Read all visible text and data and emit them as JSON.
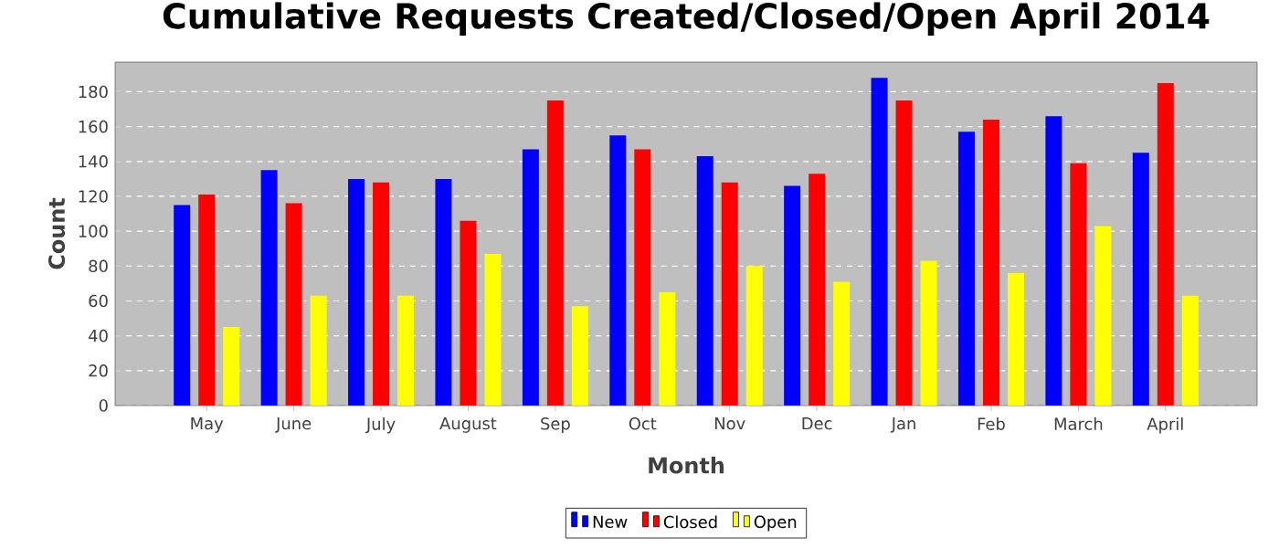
{
  "chart_data": {
    "type": "bar",
    "title": "Cumulative Requests Created/Closed/Open April 2014",
    "xlabel": "Month",
    "ylabel": "Count",
    "categories": [
      "May",
      "June",
      "July",
      "August",
      "Sep",
      "Oct",
      "Nov",
      "Dec",
      "Jan",
      "Feb",
      "March",
      "April"
    ],
    "series": [
      {
        "name": "New",
        "color": "#0000ff",
        "values": [
          115,
          135,
          130,
          130,
          147,
          155,
          143,
          126,
          188,
          157,
          166,
          145
        ]
      },
      {
        "name": "Closed",
        "color": "#ff0000",
        "values": [
          121,
          116,
          128,
          106,
          175,
          147,
          128,
          133,
          175,
          164,
          139,
          185
        ]
      },
      {
        "name": "Open",
        "color": "#ffff00",
        "values": [
          45,
          63,
          63,
          87,
          57,
          65,
          80,
          71,
          83,
          76,
          103,
          63
        ]
      }
    ],
    "ylim": [
      0,
      197
    ],
    "yticks": [
      0,
      20,
      40,
      60,
      80,
      100,
      120,
      140,
      160,
      180
    ],
    "grid": "y",
    "legend": "bottom"
  }
}
